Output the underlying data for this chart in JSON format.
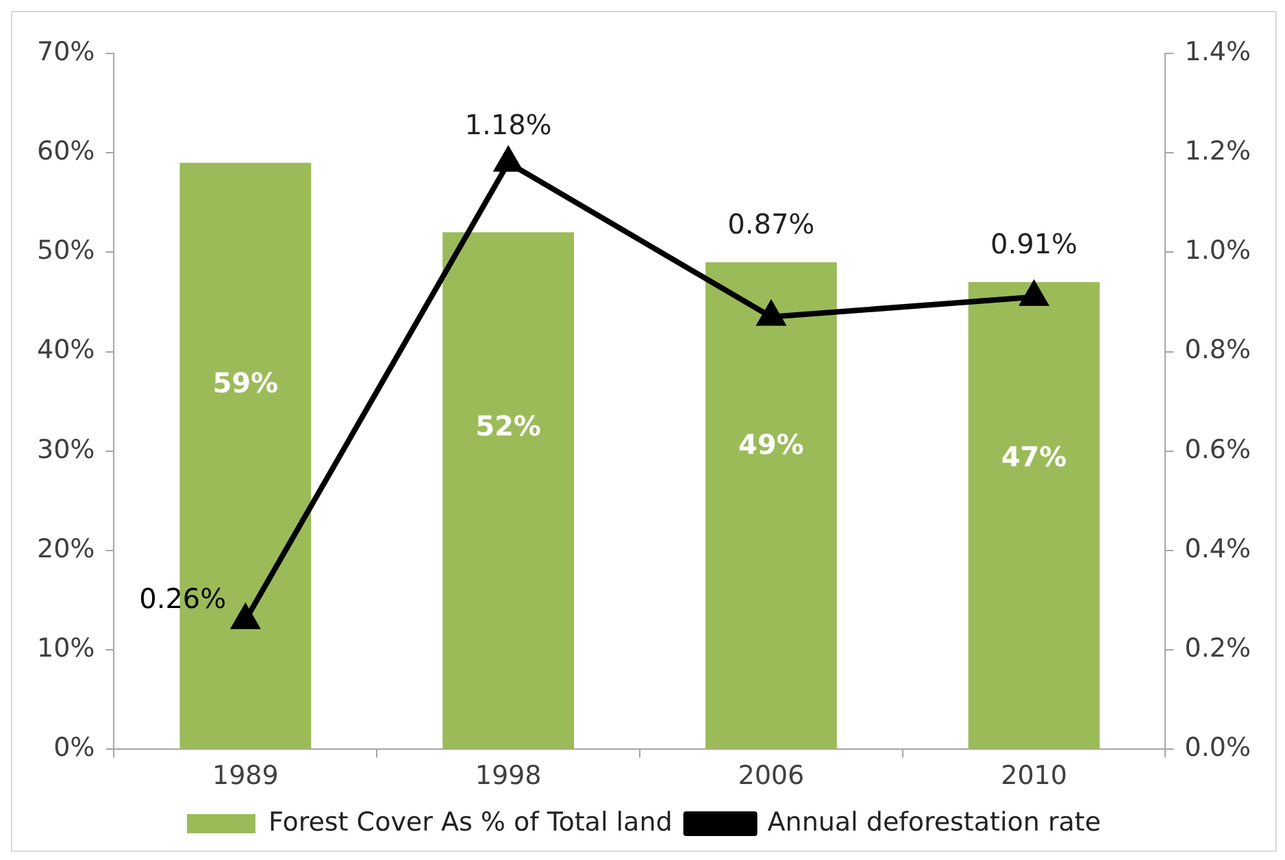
{
  "chart_data": {
    "type": "bar",
    "categories": [
      "1989",
      "1998",
      "2006",
      "2010"
    ],
    "series": [
      {
        "name": "Forest Cover As % of Total land",
        "color": "#9bbb59",
        "values": [
          59,
          52,
          49,
          47
        ],
        "value_labels": [
          "59%",
          "52%",
          "49%",
          "47%"
        ]
      },
      {
        "name": "Annual deforestation rate",
        "type": "line",
        "axis": "y2",
        "color": "#000000",
        "values": [
          0.26,
          1.18,
          0.87,
          0.91
        ],
        "value_labels": [
          "0.26%",
          "1.18%",
          "0.87%",
          "0.91%"
        ],
        "marker": "triangle",
        "line_style": "solid"
      }
    ],
    "ylim": [
      0,
      70
    ],
    "yticks": [
      {
        "value": 0,
        "label": "0%"
      },
      {
        "value": 10,
        "label": "10%"
      },
      {
        "value": 20,
        "label": "20%"
      },
      {
        "value": 30,
        "label": "30%"
      },
      {
        "value": 40,
        "label": "40%"
      },
      {
        "value": 50,
        "label": "50%"
      },
      {
        "value": 60,
        "label": "60%"
      },
      {
        "value": 70,
        "label": "70%"
      }
    ],
    "y2lim": [
      0,
      1.4
    ],
    "y2ticks": [
      {
        "value": 0,
        "label": "0.0%"
      },
      {
        "value": 0.2,
        "label": "0.2%"
      },
      {
        "value": 0.4,
        "label": "0.4%"
      },
      {
        "value": 0.6,
        "label": "0.6%"
      },
      {
        "value": 0.8,
        "label": "0.8%"
      },
      {
        "value": 1.0,
        "label": "1.0%"
      },
      {
        "value": 1.2,
        "label": "1.2%"
      },
      {
        "value": 1.4,
        "label": "1.4%"
      }
    ],
    "grid": false,
    "legend": "bottom"
  }
}
